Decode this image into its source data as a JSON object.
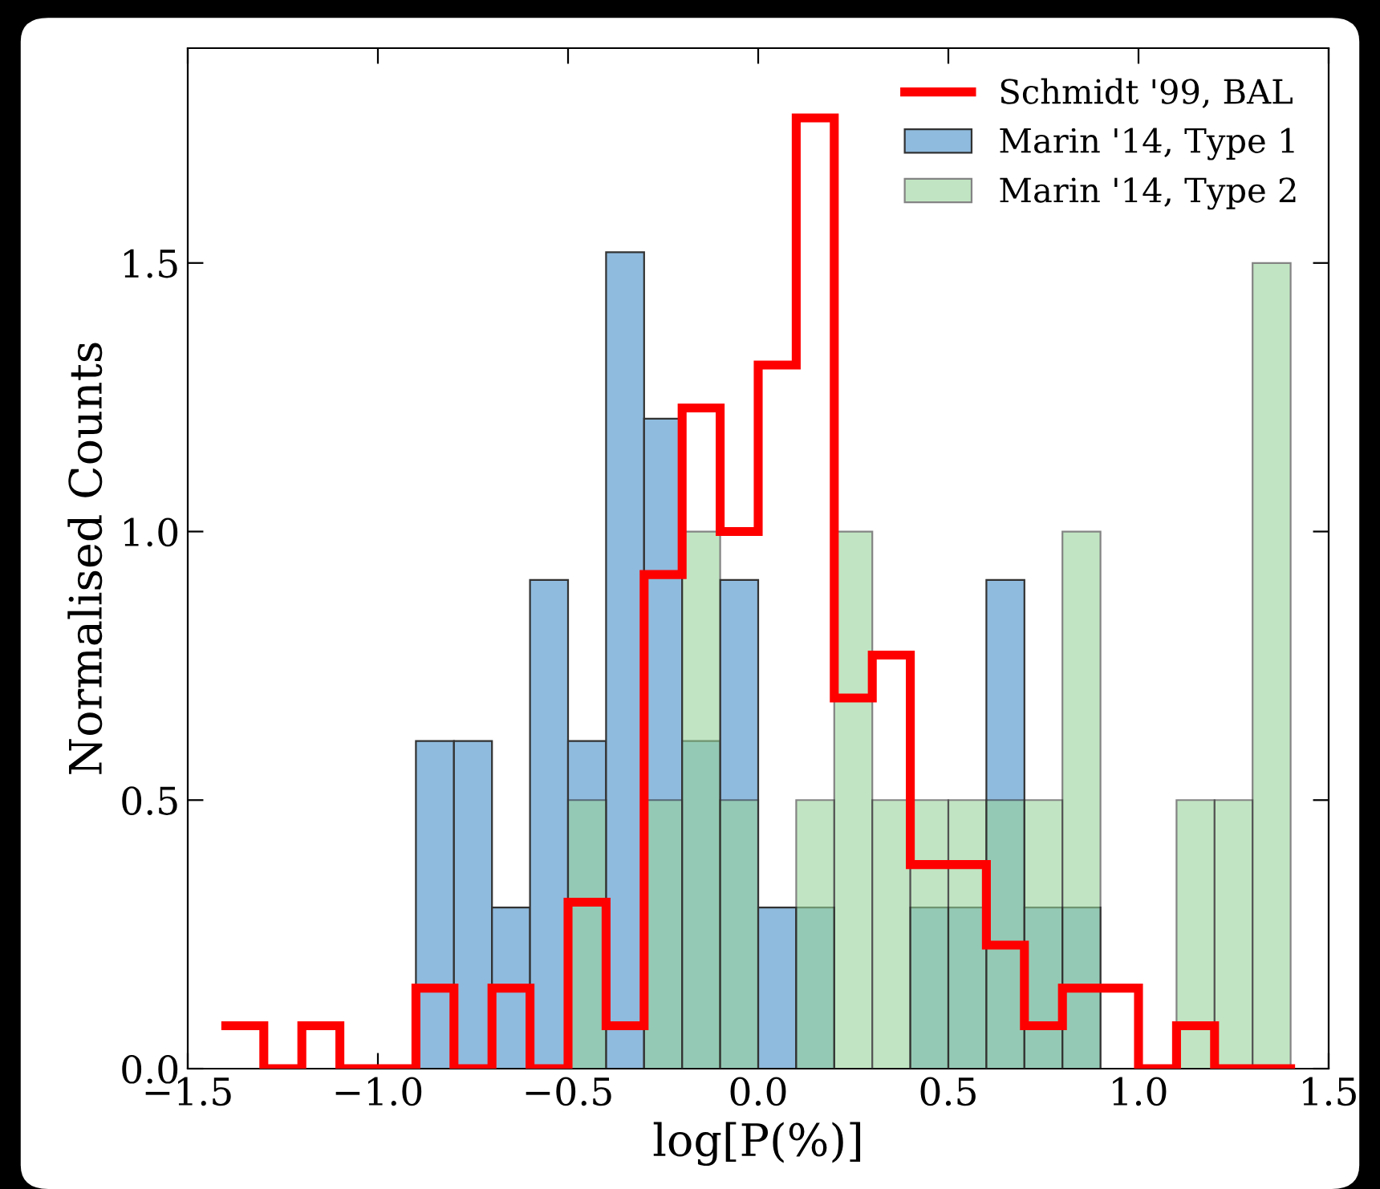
{
  "chart_data": {
    "type": "histogram",
    "xlabel": "log[P(%)]",
    "ylabel": "Normalised Counts",
    "bins": [
      -1.4,
      -1.3,
      -1.2,
      -1.1,
      -1.0,
      -0.9,
      -0.8,
      -0.7,
      -0.6,
      -0.5,
      -0.4,
      -0.3,
      -0.2,
      -0.1,
      0.0,
      0.1,
      0.2,
      0.3,
      0.4,
      0.5,
      0.6,
      0.7,
      0.8,
      0.9,
      1.0,
      1.1,
      1.2,
      1.3,
      1.4
    ],
    "series": [
      {
        "name": "Schmidt '99, BAL",
        "type": "step",
        "color": "#ff0000",
        "x": [
          -1.4,
          -1.3,
          -1.2,
          -1.1,
          -1.0,
          -0.9,
          -0.8,
          -0.7,
          -0.6,
          -0.5,
          -0.4,
          -0.3,
          -0.2,
          -0.1,
          0.0,
          0.1,
          0.2,
          0.3,
          0.4,
          0.5,
          0.6,
          0.7,
          0.8,
          0.9,
          1.0,
          1.1,
          1.2,
          1.3,
          1.4
        ],
        "values": [
          0.08,
          0,
          0.08,
          0,
          0,
          0.15,
          0,
          0.15,
          0,
          0.31,
          0.08,
          0.92,
          1.23,
          1.0,
          1.31,
          1.77,
          0.69,
          0.77,
          0.38,
          0.38,
          0.23,
          0.08,
          0.15,
          0.15,
          0,
          0.08,
          0,
          0,
          0
        ]
      },
      {
        "name": "Marin '14, Type 1",
        "color": "#8fbbde",
        "values": [
          0,
          0,
          0,
          0,
          0,
          0.61,
          0.61,
          0.3,
          0.91,
          0.61,
          1.52,
          1.21,
          0.61,
          0.91,
          0.3,
          0.3,
          0,
          0,
          0.3,
          0.3,
          0.91,
          0.3,
          0.3,
          0,
          0,
          0,
          0,
          0
        ]
      },
      {
        "name": "Marin '14, Type 2",
        "color": "#98d59a",
        "values": [
          0,
          0,
          0,
          0,
          0,
          0,
          0,
          0,
          0,
          0.5,
          0,
          0.5,
          1.0,
          0.5,
          0,
          0.5,
          1.0,
          0.5,
          0.5,
          0.5,
          0.5,
          0.5,
          1.0,
          0,
          0,
          0.5,
          0.5,
          1.5
        ]
      }
    ],
    "xlim": [
      -1.5,
      1.5
    ],
    "xticks": [
      {
        "value": -1.5,
        "label": "−1.5"
      },
      {
        "value": -1.0,
        "label": "−1.0"
      },
      {
        "value": -0.5,
        "label": "−0.5"
      },
      {
        "value": 0.0,
        "label": "0.0"
      },
      {
        "value": 0.5,
        "label": "0.5"
      },
      {
        "value": 1.0,
        "label": "1.0"
      },
      {
        "value": 1.5,
        "label": "1.5"
      }
    ],
    "ylim": [
      0,
      1.9
    ],
    "yticks": [
      {
        "value": 0,
        "label": "0.0"
      },
      {
        "value": 0.5,
        "label": "0.5"
      },
      {
        "value": 1.0,
        "label": "1.0"
      },
      {
        "value": 1.5,
        "label": "1.5"
      }
    ],
    "grid": false,
    "legend": "top right"
  }
}
